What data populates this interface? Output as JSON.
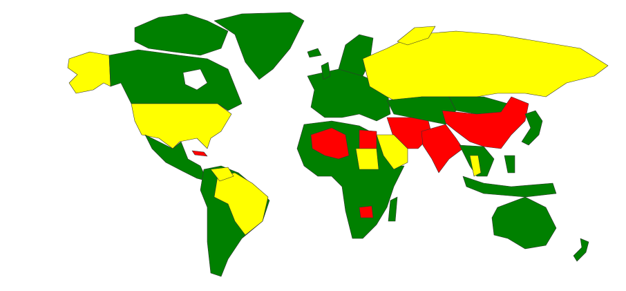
{
  "map": {
    "background": "#ffffff",
    "border_color": "#333333",
    "category_colors": {
      "green": "#008000",
      "yellow": "#ffff00",
      "red": "#ff0000"
    }
  }
}
